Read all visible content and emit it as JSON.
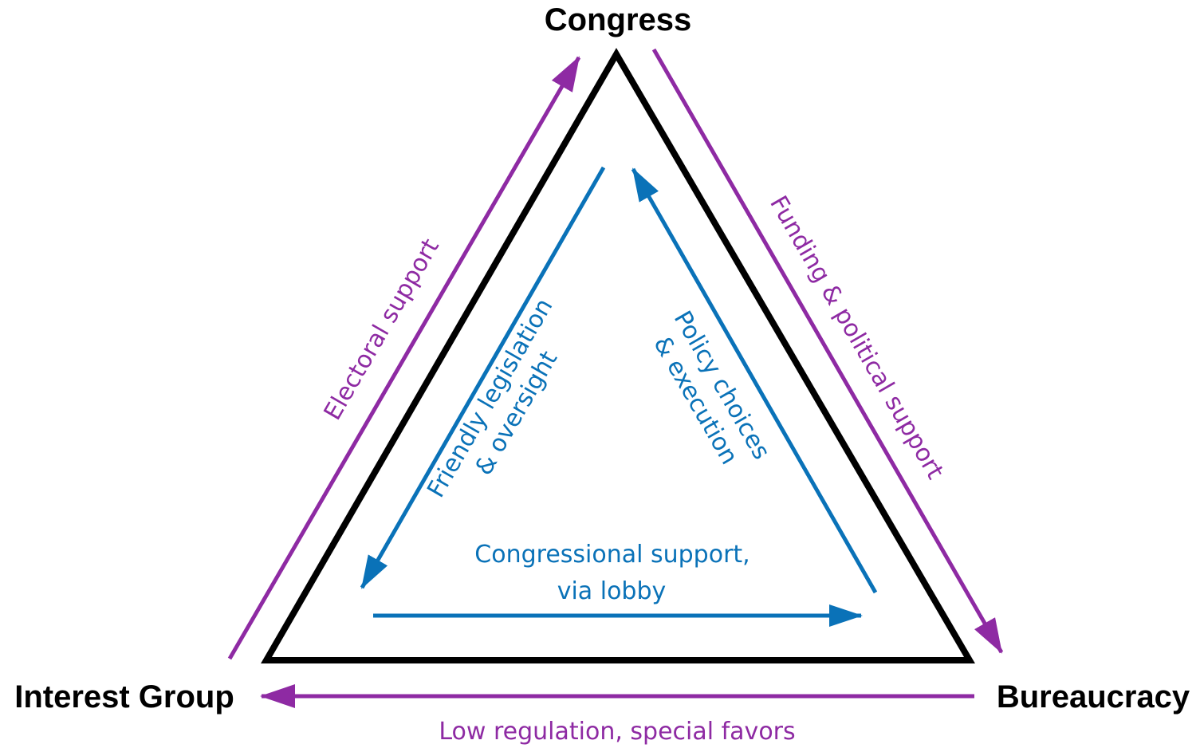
{
  "nodes": {
    "congress": "Congress",
    "interest_group": "Interest Group",
    "bureaucracy": "Bureaucracy"
  },
  "outer_labels": {
    "electoral_support": "Electoral support",
    "funding_political_support": "Funding & political support",
    "low_regulation": "Low regulation, special favors"
  },
  "inner_labels": {
    "friendly_legislation_line1": "Friendly legislation",
    "friendly_legislation_line2": "& oversight",
    "policy_choices_line1": "Policy choices",
    "policy_choices_line2": "& execution",
    "congressional_support_line1": "Congressional support,",
    "congressional_support_line2": "via lobby"
  },
  "colors": {
    "triangle": "#000000",
    "outer_arrows": "#8e2aa3",
    "inner_arrows": "#0a72b8"
  }
}
